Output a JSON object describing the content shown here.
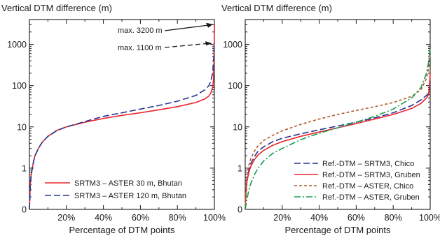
{
  "colors": {
    "red": "#e8262d",
    "blue": "#27338f",
    "brown": "#b15a2c",
    "green": "#12a04d",
    "axis": "#1a1a1a"
  },
  "chart_data": [
    {
      "type": "line",
      "title": "Vertical DTM difference (m)",
      "xlabel": "Percentage of DTM points",
      "ylabel": "Vertical DTM difference (m)",
      "xscale": "linear",
      "yscale": "log",
      "xlim": [
        0,
        100
      ],
      "ylim": [
        0.1,
        4000
      ],
      "xticks": [
        "20%",
        "40%",
        "60%",
        "80%",
        "100%"
      ],
      "yticks": [
        "1",
        "10",
        "100",
        "1000"
      ],
      "legend_position": "lower-right",
      "annotations": [
        "max. 3200 m",
        "max. 1100 m"
      ],
      "series": [
        {
          "name": "SRTM3 – ASTER 30 m, Bhutan",
          "color": "#e8262d",
          "dash": "solid",
          "x": [
            0,
            0.5,
            1,
            2,
            3,
            5,
            7,
            10,
            15,
            20,
            30,
            40,
            50,
            60,
            70,
            80,
            90,
            95,
            97,
            98,
            99,
            99.5,
            99.8,
            100
          ],
          "y": [
            0.1,
            0.4,
            0.7,
            1.3,
            2.0,
            3.1,
            4.3,
            5.9,
            8.3,
            10.0,
            13.0,
            16.0,
            19.0,
            22.0,
            26.0,
            31.0,
            39.0,
            48.0,
            56.0,
            65.0,
            90.0,
            140.0,
            400.0,
            3200.0
          ]
        },
        {
          "name": "SRTM3 – ASTER 120 m, Bhutan",
          "color": "#27338f",
          "dash": "long",
          "x": [
            0,
            0.5,
            1,
            2,
            3,
            5,
            7,
            10,
            15,
            20,
            30,
            40,
            50,
            60,
            70,
            80,
            90,
            95,
            97,
            98,
            99,
            99.5,
            100
          ],
          "y": [
            0.1,
            0.4,
            0.7,
            1.3,
            2.0,
            3.1,
            4.3,
            5.9,
            8.2,
            10.0,
            13.5,
            18.0,
            22.0,
            27.0,
            33.0,
            42.0,
            58.0,
            80.0,
            100.0,
            125.0,
            200.0,
            350.0,
            1100.0
          ]
        }
      ]
    },
    {
      "type": "line",
      "title": "Vertical DTM difference (m)",
      "xlabel": "Percentage of DTM points",
      "ylabel": "Vertical DTM difference (m)",
      "xscale": "linear",
      "yscale": "log",
      "xlim": [
        0,
        100
      ],
      "ylim": [
        0.1,
        4000
      ],
      "xticks": [
        "20%",
        "40%",
        "60%",
        "80%",
        "100%"
      ],
      "yticks": [
        "1",
        "10",
        "100",
        "1000"
      ],
      "legend_position": "lower-right",
      "series": [
        {
          "name": "Ref.-DTM – SRTM3, Chico",
          "color": "#27338f",
          "dash": "long",
          "x": [
            0,
            0.5,
            1,
            2,
            3,
            5,
            7,
            10,
            15,
            20,
            30,
            40,
            50,
            60,
            70,
            80,
            90,
            95,
            98,
            99,
            100
          ],
          "y": [
            0.1,
            0.3,
            0.5,
            0.9,
            1.3,
            1.9,
            2.6,
            3.3,
            4.4,
            5.3,
            6.8,
            8.5,
            10.5,
            13.0,
            16.5,
            22.0,
            33.0,
            45.0,
            58.0,
            65.0,
            100.0
          ]
        },
        {
          "name": "Ref.-DTM – SRTM3, Gruben",
          "color": "#e8262d",
          "dash": "solid",
          "x": [
            0,
            0.5,
            1,
            2,
            3,
            5,
            7,
            10,
            15,
            20,
            30,
            40,
            50,
            60,
            70,
            80,
            90,
            95,
            98,
            99,
            99.5,
            100
          ],
          "y": [
            0.1,
            0.3,
            0.5,
            0.8,
            1.1,
            1.6,
            2.1,
            2.7,
            3.6,
            4.4,
            5.9,
            7.5,
            9.5,
            12.0,
            15.5,
            20.0,
            28.0,
            37.0,
            50.0,
            60.0,
            90.0,
            200.0
          ]
        },
        {
          "name": "Ref.-DTM – ASTER, Chico",
          "color": "#b15a2c",
          "dash": "short",
          "x": [
            0,
            0.5,
            1,
            2,
            3,
            5,
            7,
            10,
            15,
            20,
            30,
            40,
            50,
            60,
            70,
            80,
            90,
            95,
            98,
            99,
            100
          ],
          "y": [
            0.1,
            0.4,
            0.7,
            1.2,
            1.7,
            2.6,
            3.5,
            4.7,
            6.3,
            8.0,
            11.5,
            15.5,
            20.0,
            25.0,
            31.0,
            39.0,
            55.0,
            80.0,
            150.0,
            250.0,
            600.0
          ]
        },
        {
          "name": "Ref.-DTM – ASTER, Gruben",
          "color": "#12a04d",
          "dash": "dashdot",
          "x": [
            0,
            1,
            2,
            3,
            5,
            7,
            10,
            15,
            20,
            30,
            40,
            50,
            60,
            70,
            80,
            90,
            95,
            98,
            99,
            100
          ],
          "y": [
            0.1,
            0.18,
            0.3,
            0.42,
            0.7,
            1.0,
            1.5,
            2.3,
            3.0,
            4.9,
            7.0,
            9.5,
            13.0,
            18.0,
            27.0,
            50.0,
            90.0,
            200.0,
            350.0,
            800.0
          ]
        }
      ]
    }
  ]
}
